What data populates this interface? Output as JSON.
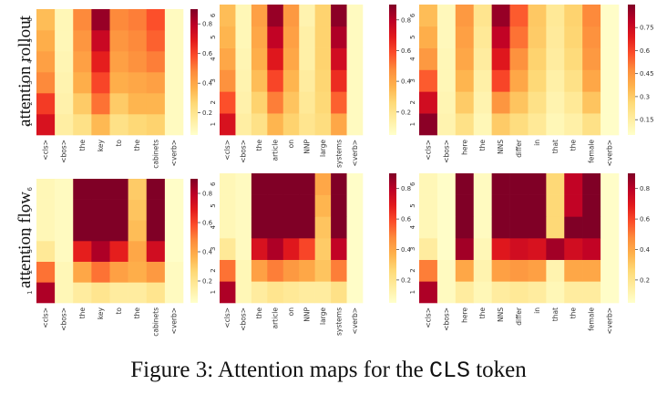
{
  "caption": {
    "prefix": "Figure 3: Attention maps for the ",
    "code": "CLS",
    "suffix": " token"
  },
  "row_labels": [
    "attention rollout",
    "attention flow"
  ],
  "chart_data": [
    {
      "type": "heatmap",
      "method": "attention rollout",
      "x_tokens": [
        "<cls>",
        "<bos>",
        "the",
        "key",
        "to",
        "the",
        "cabinets",
        "<verb>"
      ],
      "y_labels": [
        "1",
        "2",
        "3",
        "4",
        "5",
        "6"
      ],
      "colorbar_ticks": [
        0.2,
        0.4,
        0.6,
        0.8
      ],
      "vmin": 0.05,
      "vmax": 0.9,
      "values": [
        [
          0.72,
          0.15,
          0.22,
          0.35,
          0.22,
          0.26,
          0.28,
          0.08
        ],
        [
          0.62,
          0.13,
          0.3,
          0.52,
          0.3,
          0.36,
          0.36,
          0.08
        ],
        [
          0.48,
          0.12,
          0.38,
          0.6,
          0.38,
          0.4,
          0.42,
          0.08
        ],
        [
          0.42,
          0.11,
          0.42,
          0.68,
          0.42,
          0.46,
          0.5,
          0.08
        ],
        [
          0.38,
          0.1,
          0.45,
          0.76,
          0.45,
          0.48,
          0.55,
          0.08
        ],
        [
          0.34,
          0.1,
          0.48,
          0.86,
          0.48,
          0.5,
          0.58,
          0.08
        ]
      ]
    },
    {
      "type": "heatmap",
      "method": "attention rollout",
      "x_tokens": [
        "<cls>",
        "<bos>",
        "the",
        "article",
        "on",
        "NNP",
        "large",
        "systems",
        "<verb>"
      ],
      "y_labels": [
        "1",
        "2",
        "3",
        "4",
        "5",
        "6"
      ],
      "colorbar_ticks": [
        0.2,
        0.4,
        0.6,
        0.8
      ],
      "vmin": 0.05,
      "vmax": 0.9,
      "values": [
        [
          0.72,
          0.15,
          0.22,
          0.36,
          0.28,
          0.2,
          0.24,
          0.4,
          0.08
        ],
        [
          0.58,
          0.13,
          0.28,
          0.5,
          0.32,
          0.18,
          0.26,
          0.55,
          0.08
        ],
        [
          0.46,
          0.12,
          0.34,
          0.6,
          0.36,
          0.16,
          0.27,
          0.65,
          0.08
        ],
        [
          0.4,
          0.11,
          0.38,
          0.7,
          0.4,
          0.14,
          0.28,
          0.74,
          0.08
        ],
        [
          0.36,
          0.1,
          0.4,
          0.78,
          0.42,
          0.14,
          0.28,
          0.82,
          0.08
        ],
        [
          0.34,
          0.1,
          0.42,
          0.86,
          0.44,
          0.12,
          0.28,
          0.88,
          0.08
        ]
      ]
    },
    {
      "type": "heatmap",
      "method": "attention rollout",
      "x_tokens": [
        "<cls>",
        "<bos>",
        "here",
        "the",
        "NNS",
        "differ",
        "in",
        "that",
        "the",
        "female",
        "<verb>"
      ],
      "y_labels": [
        "1",
        "2",
        "3",
        "4",
        "5",
        "6"
      ],
      "colorbar_ticks": [
        0.15,
        0.3,
        0.45,
        0.6,
        0.75
      ],
      "vmin": 0.05,
      "vmax": 0.9,
      "values": [
        [
          0.88,
          0.12,
          0.22,
          0.1,
          0.3,
          0.24,
          0.18,
          0.1,
          0.14,
          0.22,
          0.06
        ],
        [
          0.74,
          0.11,
          0.3,
          0.12,
          0.45,
          0.32,
          0.22,
          0.12,
          0.18,
          0.32,
          0.06
        ],
        [
          0.56,
          0.1,
          0.36,
          0.14,
          0.6,
          0.4,
          0.26,
          0.14,
          0.22,
          0.4,
          0.06
        ],
        [
          0.44,
          0.1,
          0.4,
          0.16,
          0.7,
          0.46,
          0.28,
          0.16,
          0.25,
          0.44,
          0.06
        ],
        [
          0.38,
          0.09,
          0.42,
          0.18,
          0.78,
          0.52,
          0.3,
          0.17,
          0.27,
          0.46,
          0.06
        ],
        [
          0.34,
          0.09,
          0.44,
          0.2,
          0.86,
          0.56,
          0.31,
          0.18,
          0.28,
          0.48,
          0.06
        ]
      ]
    },
    {
      "type": "heatmap",
      "method": "attention flow",
      "x_tokens": [
        "<cls>",
        "<bos>",
        "the",
        "key",
        "to",
        "the",
        "cabinets",
        "<verb>"
      ],
      "y_labels": [
        "1",
        "2",
        "3",
        "4",
        "5",
        "6"
      ],
      "colorbar_ticks": [
        0.2,
        0.4,
        0.6,
        0.8
      ],
      "vmin": 0.05,
      "vmax": 0.9,
      "values": [
        [
          0.82,
          0.1,
          0.16,
          0.2,
          0.16,
          0.16,
          0.2,
          0.08
        ],
        [
          0.52,
          0.1,
          0.4,
          0.52,
          0.42,
          0.38,
          0.44,
          0.08
        ],
        [
          0.18,
          0.08,
          0.68,
          0.82,
          0.68,
          0.4,
          0.74,
          0.06
        ],
        [
          0.1,
          0.08,
          0.9,
          0.9,
          0.9,
          0.34,
          0.9,
          0.06
        ],
        [
          0.1,
          0.08,
          0.9,
          0.9,
          0.9,
          0.32,
          0.9,
          0.06
        ],
        [
          0.1,
          0.08,
          0.9,
          0.9,
          0.9,
          0.3,
          0.9,
          0.06
        ]
      ]
    },
    {
      "type": "heatmap",
      "method": "attention flow",
      "x_tokens": [
        "<cls>",
        "<bos>",
        "the",
        "article",
        "on",
        "NNP",
        "large",
        "systems",
        "<verb>"
      ],
      "y_labels": [
        "1",
        "2",
        "3",
        "4",
        "5",
        "6"
      ],
      "colorbar_ticks": [
        0.2,
        0.4,
        0.6,
        0.8
      ],
      "vmin": 0.05,
      "vmax": 0.9,
      "values": [
        [
          0.82,
          0.1,
          0.16,
          0.2,
          0.18,
          0.16,
          0.16,
          0.22,
          0.06
        ],
        [
          0.52,
          0.1,
          0.42,
          0.5,
          0.44,
          0.4,
          0.32,
          0.5,
          0.06
        ],
        [
          0.18,
          0.08,
          0.72,
          0.82,
          0.7,
          0.6,
          0.3,
          0.78,
          0.06
        ],
        [
          0.1,
          0.08,
          0.9,
          0.9,
          0.9,
          0.9,
          0.32,
          0.9,
          0.06
        ],
        [
          0.1,
          0.08,
          0.9,
          0.9,
          0.9,
          0.9,
          0.36,
          0.9,
          0.06
        ],
        [
          0.1,
          0.08,
          0.9,
          0.9,
          0.9,
          0.9,
          0.4,
          0.9,
          0.06
        ]
      ]
    },
    {
      "type": "heatmap",
      "method": "attention flow",
      "x_tokens": [
        "<cls>",
        "<bos>",
        "here",
        "the",
        "NNS",
        "differ",
        "in",
        "that",
        "the",
        "female",
        "<verb>"
      ],
      "y_labels": [
        "1",
        "2",
        "3",
        "4",
        "5",
        "6"
      ],
      "colorbar_ticks": [
        0.2,
        0.4,
        0.6,
        0.8
      ],
      "vmin": 0.05,
      "vmax": 0.9,
      "values": [
        [
          0.82,
          0.08,
          0.16,
          0.1,
          0.16,
          0.18,
          0.16,
          0.1,
          0.16,
          0.16,
          0.06
        ],
        [
          0.5,
          0.08,
          0.4,
          0.12,
          0.42,
          0.44,
          0.42,
          0.12,
          0.4,
          0.4,
          0.06
        ],
        [
          0.16,
          0.06,
          0.84,
          0.1,
          0.7,
          0.74,
          0.72,
          0.84,
          0.74,
          0.78,
          0.06
        ],
        [
          0.1,
          0.06,
          0.9,
          0.08,
          0.9,
          0.9,
          0.9,
          0.26,
          0.9,
          0.9,
          0.06
        ],
        [
          0.1,
          0.06,
          0.9,
          0.08,
          0.9,
          0.9,
          0.9,
          0.26,
          0.78,
          0.9,
          0.06
        ],
        [
          0.1,
          0.06,
          0.9,
          0.08,
          0.9,
          0.9,
          0.9,
          0.26,
          0.78,
          0.9,
          0.06
        ]
      ]
    }
  ],
  "colormap": [
    "#ffffcc",
    "#ffeda0",
    "#fed976",
    "#feb24c",
    "#fd8d3c",
    "#fc4e2a",
    "#e31a1c",
    "#bd0026",
    "#800026"
  ]
}
